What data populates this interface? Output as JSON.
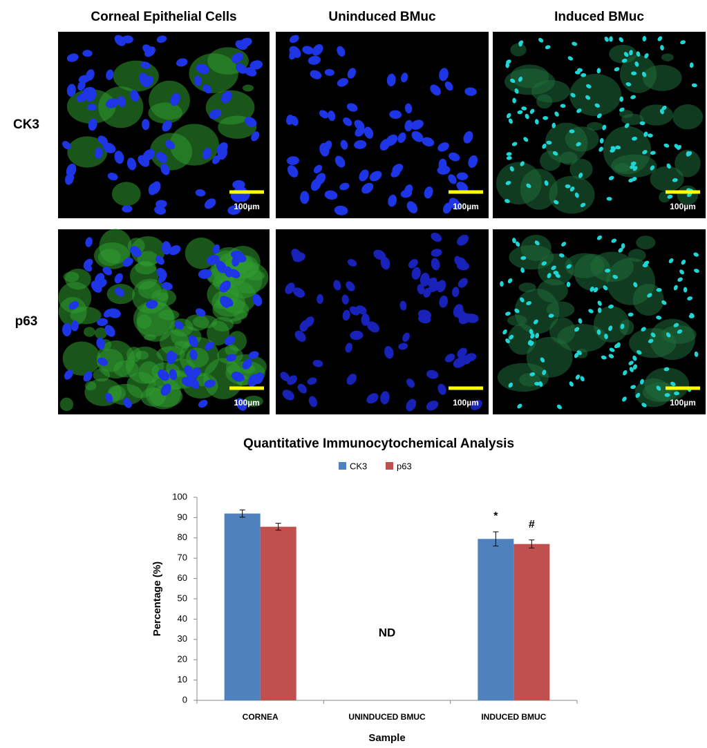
{
  "images": {
    "columns": [
      "Corneal Epithelial Cells",
      "Uninduced BMuc",
      "Induced BMuc"
    ],
    "rows": [
      "CK3",
      "p63"
    ],
    "scale_bars": [
      "100µm",
      "100µm",
      "100µm",
      "100µm",
      "100µm",
      "100µm"
    ]
  },
  "chart_data": {
    "type": "bar",
    "title": "Quantitative Immunocytochemical Analysis",
    "x_label": "Sample",
    "y_label": "Percentage (%)",
    "categories": [
      "CORNEA",
      "UNINDUCED BMUC",
      "INDUCED BMUC"
    ],
    "series": [
      {
        "name": "CK3",
        "color": "#4f81bd",
        "values": [
          92,
          null,
          79.5
        ],
        "errors": [
          1.8,
          null,
          3.5
        ]
      },
      {
        "name": "p63",
        "color": "#c0504d",
        "values": [
          85.5,
          null,
          77
        ],
        "errors": [
          1.7,
          null,
          2
        ]
      }
    ],
    "annotations": [
      "*",
      "#",
      "ND"
    ],
    "ylim": [
      0,
      100
    ],
    "yticks": [
      0,
      10,
      20,
      30,
      40,
      50,
      60,
      70,
      80,
      90,
      100
    ]
  }
}
